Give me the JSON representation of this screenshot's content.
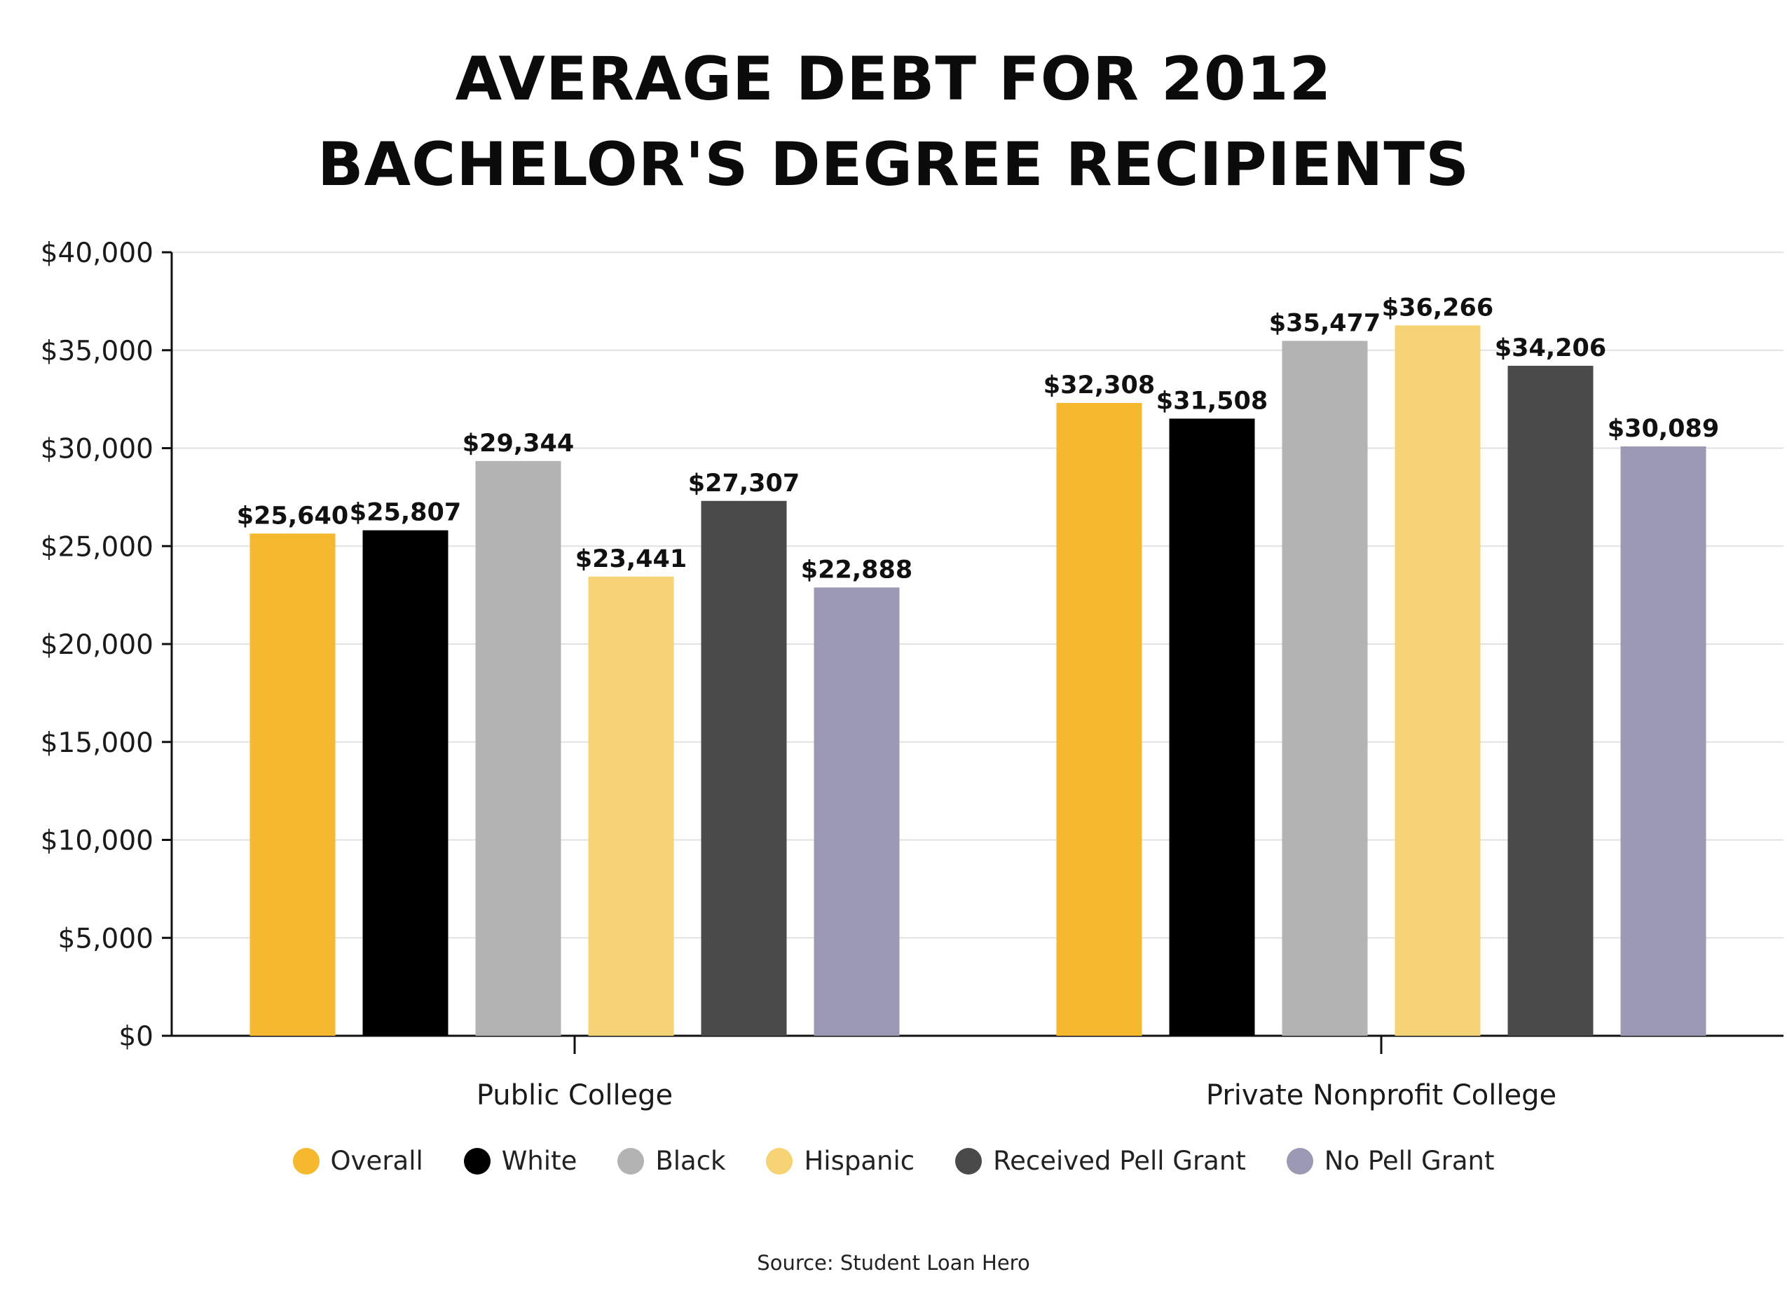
{
  "title": {
    "line1": "AVERAGE DEBT FOR 2012",
    "line2": "BACHELOR'S DEGREE RECIPIENTS"
  },
  "source": "Source: Student Loan Hero",
  "chart_data": {
    "type": "bar",
    "categories": [
      "Public College",
      "Private Nonprofit College"
    ],
    "series": [
      {
        "name": "Overall",
        "color": "#F5B82E",
        "values": [
          25640,
          32308
        ]
      },
      {
        "name": "White",
        "color": "#000000",
        "values": [
          25807,
          31508
        ]
      },
      {
        "name": "Black",
        "color": "#B3B3B3",
        "values": [
          29344,
          35477
        ]
      },
      {
        "name": "Hispanic",
        "color": "#F5D273",
        "values": [
          23441,
          36266
        ]
      },
      {
        "name": "Received Pell Grant",
        "color": "#4A4A4A",
        "values": [
          27307,
          34206
        ]
      },
      {
        "name": "No Pell Grant",
        "color": "#9C99B5",
        "values": [
          22888,
          30089
        ]
      }
    ],
    "data_labels": [
      [
        "$25,640",
        "$32,308"
      ],
      [
        "$25,807",
        "$31,508"
      ],
      [
        "$29,344",
        "$35,477"
      ],
      [
        "$23,441",
        "$36,266"
      ],
      [
        "$27,307",
        "$34,206"
      ],
      [
        "$22,888",
        "$30,089"
      ]
    ],
    "yticks": [
      0,
      5000,
      10000,
      15000,
      20000,
      25000,
      30000,
      35000,
      40000
    ],
    "ytick_labels": [
      "$0",
      "$5,000",
      "$10,000",
      "$15,000",
      "$20,000",
      "$25,000",
      "$30,000",
      "$35,000",
      "$40,000"
    ],
    "ylim": [
      0,
      40000
    ],
    "grid": true,
    "legend_position": "bottom"
  }
}
